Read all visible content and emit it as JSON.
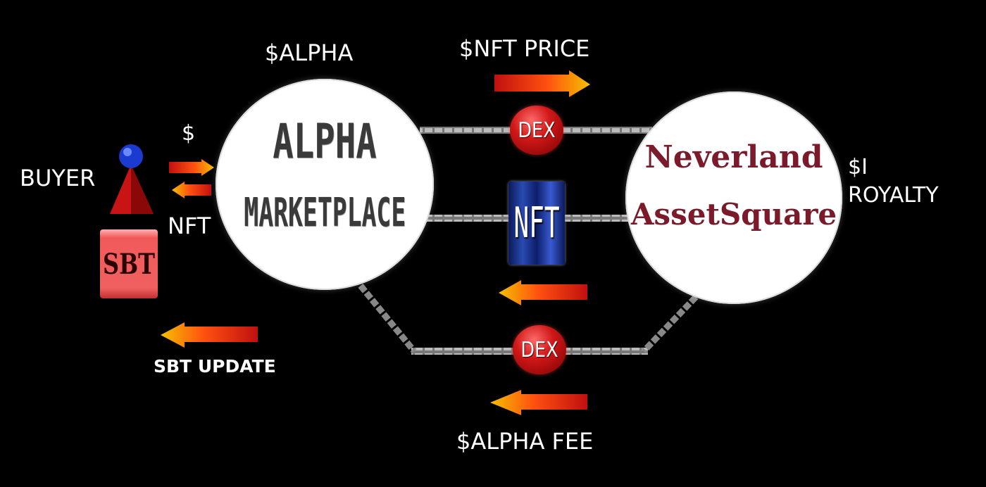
{
  "labels": {
    "alpha_top": "$ALPHA",
    "nft_price": "$NFT PRICE",
    "dollar": "$",
    "buyer": "BUYER",
    "nft_small": "NFT",
    "sbt_update": "SBT UPDATE",
    "royalty_dollar": "$I",
    "royalty": "ROYALTY",
    "alpha_fee": "$ALPHA FEE"
  },
  "nodes": {
    "alpha_line1": "ALPHA",
    "alpha_line2": "MARKETPLACE",
    "neverland_line1": "Neverland",
    "neverland_line2": "AssetSquare",
    "dex_top": "DEX",
    "dex_bottom": "DEX",
    "nft_token": "NFT",
    "sbt": "SBT"
  },
  "colors": {
    "background": "#000000",
    "neverland_text": "#7a1a2a",
    "arrow_head": "#f5b800",
    "arrow_tail": "#c01010",
    "dex": "#d01818"
  }
}
